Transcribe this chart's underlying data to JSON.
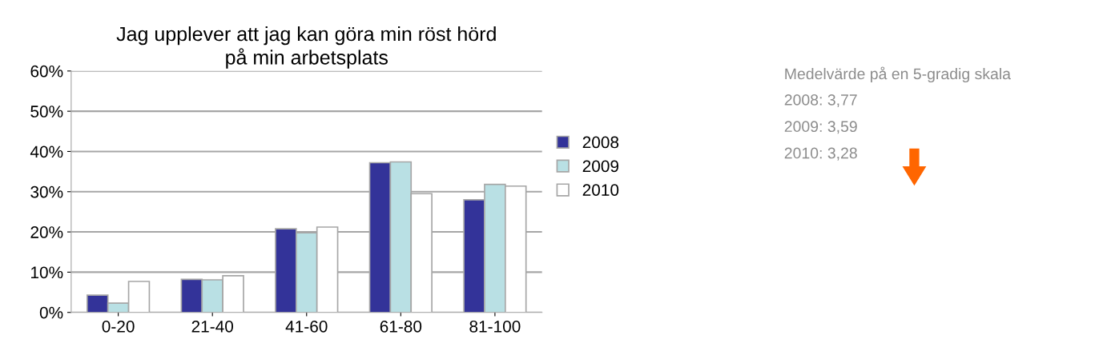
{
  "chart_data": {
    "type": "bar",
    "title": "Jag upplever att jag kan göra min röst hörd\npå min arbetsplats",
    "categories": [
      "0-20",
      "21-40",
      "41-60",
      "61-80",
      "81-100"
    ],
    "series": [
      {
        "name": "2008",
        "color": "#333399",
        "values": [
          4.3,
          8.2,
          20.8,
          37.2,
          28.0
        ]
      },
      {
        "name": "2009",
        "color": "#b9e0e4",
        "values": [
          2.3,
          8.1,
          19.8,
          37.4,
          31.8
        ]
      },
      {
        "name": "2010",
        "color": "#ffffff",
        "values": [
          7.7,
          9.1,
          21.2,
          29.5,
          31.4
        ]
      }
    ],
    "ylim": [
      0,
      60
    ],
    "yticks": [
      {
        "value": 0,
        "label": "0%"
      },
      {
        "value": 10,
        "label": "10%"
      },
      {
        "value": 20,
        "label": "20%"
      },
      {
        "value": 30,
        "label": "30%"
      },
      {
        "value": 40,
        "label": "40%"
      },
      {
        "value": 50,
        "label": "50%"
      },
      {
        "value": 60,
        "label": "60%"
      }
    ],
    "grid": "y",
    "legend": "right",
    "annotations": [
      "Medelvärde på en 5-gradig skala",
      "2008: 3,77",
      "2009: 3,59",
      "2010: 3,28"
    ]
  }
}
